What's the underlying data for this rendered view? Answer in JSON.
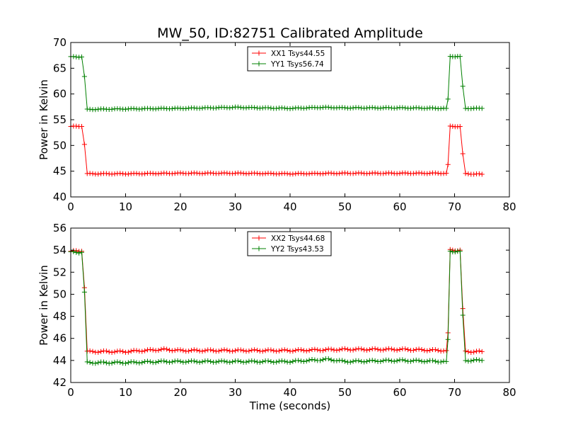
{
  "title": "MW_50, ID:82751 Calibrated Amplitude",
  "chart_data": [
    {
      "type": "line",
      "title": "MW_50, ID:82751 Calibrated Amplitude",
      "xlabel": "",
      "ylabel": "Power in Kelvin",
      "xlim": [
        0,
        80
      ],
      "ylim": [
        40,
        70
      ],
      "x_ticks": [
        "0",
        "10",
        "20",
        "30",
        "40",
        "50",
        "60",
        "70",
        "80"
      ],
      "y_ticks": [
        "40",
        "45",
        "50",
        "55",
        "60",
        "65",
        "70"
      ],
      "grid": false,
      "legend_position": "top-center",
      "marker": "+",
      "series": [
        {
          "name": "XX1 Tsys44.55",
          "color": "#ff0000",
          "points": [
            [
              0,
              53.7
            ],
            [
              1,
              53.7
            ],
            [
              2,
              53.7
            ],
            [
              2.5,
              50.2
            ],
            [
              3,
              44.5
            ],
            [
              10,
              44.5
            ],
            [
              20,
              44.6
            ],
            [
              30,
              44.6
            ],
            [
              40,
              44.5
            ],
            [
              50,
              44.6
            ],
            [
              60,
              44.6
            ],
            [
              68.5,
              44.6
            ],
            [
              68.8,
              46.3
            ],
            [
              69.2,
              53.7
            ],
            [
              71,
              53.7
            ],
            [
              71.5,
              48.4
            ],
            [
              72,
              44.5
            ],
            [
              75,
              44.4
            ]
          ]
        },
        {
          "name": "YY1 Tsys56.74",
          "color": "#008000",
          "points": [
            [
              0,
              67.2
            ],
            [
              1,
              67.2
            ],
            [
              2,
              67.2
            ],
            [
              2.5,
              63.4
            ],
            [
              3,
              57.0
            ],
            [
              10,
              57.1
            ],
            [
              20,
              57.2
            ],
            [
              30,
              57.4
            ],
            [
              40,
              57.2
            ],
            [
              46,
              57.4
            ],
            [
              50,
              57.3
            ],
            [
              60,
              57.3
            ],
            [
              68.5,
              57.2
            ],
            [
              68.8,
              59.0
            ],
            [
              69.2,
              67.3
            ],
            [
              71,
              67.3
            ],
            [
              71.5,
              61.5
            ],
            [
              72,
              57.2
            ],
            [
              75,
              57.2
            ]
          ]
        }
      ]
    },
    {
      "type": "line",
      "xlabel": "Time (seconds)",
      "ylabel": "Power in Kelvin",
      "xlim": [
        0,
        80
      ],
      "ylim": [
        42,
        56
      ],
      "x_ticks": [
        "0",
        "10",
        "20",
        "30",
        "40",
        "50",
        "60",
        "70",
        "80"
      ],
      "y_ticks": [
        "42",
        "44",
        "46",
        "48",
        "50",
        "52",
        "54",
        "56"
      ],
      "grid": false,
      "legend_position": "top-center",
      "marker": "+",
      "series": [
        {
          "name": "XX2 Tsys44.68",
          "color": "#ff0000",
          "points": [
            [
              0,
              53.9
            ],
            [
              1,
              53.9
            ],
            [
              2,
              53.9
            ],
            [
              2.5,
              50.6
            ],
            [
              3,
              44.8
            ],
            [
              10,
              44.8
            ],
            [
              17,
              45.0
            ],
            [
              20,
              44.9
            ],
            [
              30,
              44.9
            ],
            [
              40,
              44.9
            ],
            [
              50,
              45.0
            ],
            [
              60,
              45.0
            ],
            [
              68.5,
              44.9
            ],
            [
              68.8,
              46.5
            ],
            [
              69.2,
              54.0
            ],
            [
              71,
              54.0
            ],
            [
              71.5,
              48.7
            ],
            [
              72,
              44.8
            ],
            [
              75,
              44.8
            ]
          ]
        },
        {
          "name": "YY2 Tsys43.53",
          "color": "#008000",
          "points": [
            [
              0,
              53.8
            ],
            [
              1,
              53.8
            ],
            [
              2,
              53.8
            ],
            [
              2.5,
              50.2
            ],
            [
              3,
              43.8
            ],
            [
              10,
              43.8
            ],
            [
              17,
              43.9
            ],
            [
              20,
              43.9
            ],
            [
              30,
              43.9
            ],
            [
              40,
              43.9
            ],
            [
              47,
              44.1
            ],
            [
              50,
              43.9
            ],
            [
              60,
              44.0
            ],
            [
              68.5,
              43.9
            ],
            [
              68.8,
              45.9
            ],
            [
              69.2,
              53.9
            ],
            [
              71,
              53.9
            ],
            [
              71.5,
              48.1
            ],
            [
              72,
              44.0
            ],
            [
              75,
              44.0
            ]
          ]
        }
      ]
    }
  ]
}
